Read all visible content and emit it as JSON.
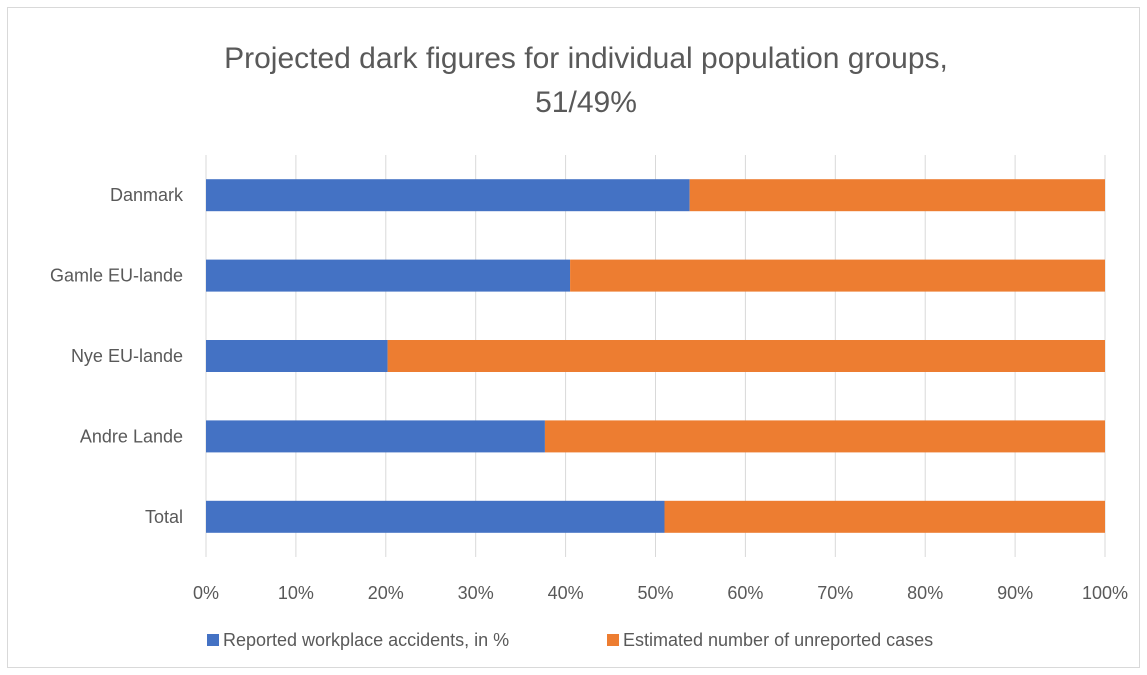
{
  "chart_data": {
    "type": "bar",
    "orientation": "horizontal",
    "stacked": "percent",
    "title": "Projected dark figures for individual population groups, 51/49%",
    "title_lines": [
      "Projected dark figures for individual population groups,",
      "51/49%"
    ],
    "categories": [
      "Danmark",
      "Gamle EU-lande",
      "Nye EU-lande",
      "Andre Lande",
      "Total"
    ],
    "series": [
      {
        "name": "Reported workplace accidents, in %",
        "color": "#4472C4",
        "values": [
          53.8,
          40.5,
          20.2,
          37.7,
          51.0
        ]
      },
      {
        "name": "Estimated number of unreported cases",
        "color": "#ED7D31",
        "values": [
          46.2,
          59.5,
          79.8,
          62.3,
          49.0
        ]
      }
    ],
    "x_ticks": [
      "0%",
      "10%",
      "20%",
      "30%",
      "40%",
      "50%",
      "60%",
      "70%",
      "80%",
      "90%",
      "100%"
    ],
    "xlim": [
      0,
      100
    ],
    "grid": "vertical",
    "grid_color": "#d9d9d9",
    "legend_position": "bottom",
    "xlabel": "",
    "ylabel": ""
  }
}
